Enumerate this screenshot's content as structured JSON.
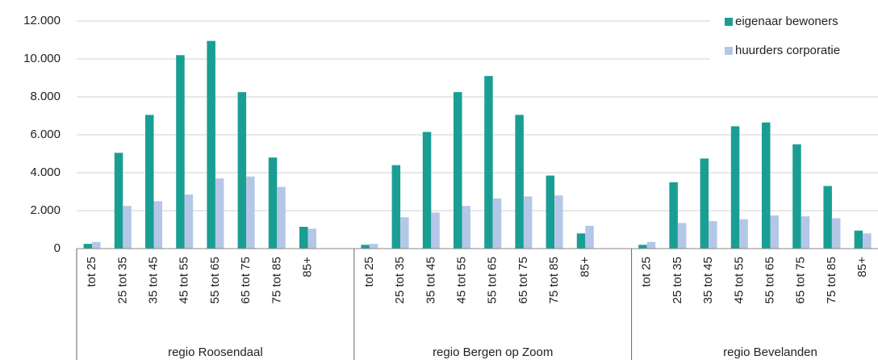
{
  "chart_data": {
    "type": "bar",
    "groups": [
      "regio Roosendaal",
      "regio Bergen op Zoom",
      "regio Bevelanden"
    ],
    "categories": [
      "tot 25",
      "25 tot 35",
      "35 tot 45",
      "45 tot 55",
      "55 tot 65",
      "65 tot 75",
      "75 tot 85",
      "85+",
      "tot 25",
      "25 tot 35",
      "35 tot 45",
      "45 tot 55",
      "55 tot 65",
      "65 tot 75",
      "75 tot 85",
      "85+",
      "tot 25",
      "25 tot 35",
      "35 tot 45",
      "45 tot 55",
      "55 tot 65",
      "65 tot 75",
      "75 tot 85",
      "85+"
    ],
    "series": [
      {
        "name": "eigenaar bewoners",
        "color": "#1a9e94",
        "values": [
          250,
          5050,
          7050,
          10200,
          10950,
          8250,
          4800,
          1150,
          200,
          4400,
          6150,
          8250,
          9100,
          7050,
          3850,
          800,
          200,
          3500,
          4750,
          6450,
          6650,
          5500,
          3300,
          950
        ]
      },
      {
        "name": "huurders corporatie",
        "color": "#b4c7e7",
        "values": [
          350,
          2250,
          2500,
          2850,
          3700,
          3800,
          3250,
          1050,
          250,
          1650,
          1900,
          2250,
          2650,
          2750,
          2800,
          1200,
          350,
          1350,
          1450,
          1550,
          1750,
          1700,
          1600,
          800
        ]
      }
    ],
    "ylim": [
      0,
      12000
    ],
    "yticks": [
      0,
      {
        "value": 2000,
        "label": "2.000"
      },
      {
        "value": 4000,
        "label": "4.000"
      },
      {
        "value": 6000,
        "label": "6.000"
      },
      {
        "value": 8000,
        "label": "8.000"
      },
      {
        "value": 10000,
        "label": "10.000"
      },
      {
        "value": 12000,
        "label": "12.000"
      }
    ],
    "grid": true,
    "legend": "top-right"
  }
}
